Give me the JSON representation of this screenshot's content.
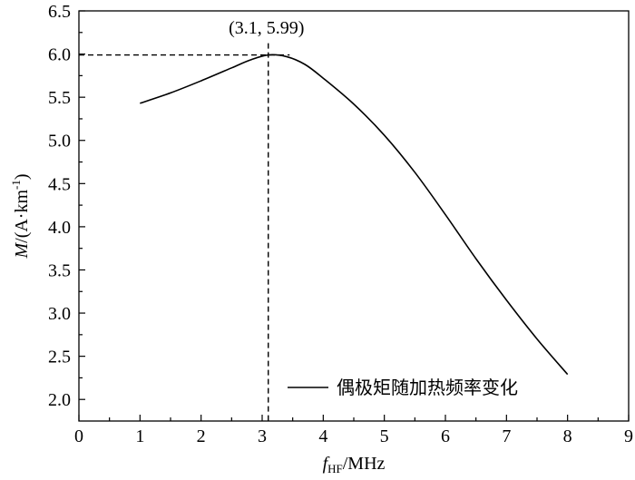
{
  "chart_data": {
    "type": "line",
    "title": "",
    "xlabel": {
      "main": "f",
      "sub": "HF",
      "unit": "/MHz"
    },
    "ylabel": {
      "main": "M",
      "unit_pre": "/(A·km",
      "sup": "-1",
      "unit_post": ")"
    },
    "xlim": [
      0,
      9
    ],
    "ylim": [
      1.75,
      6.5
    ],
    "xticks": [
      "0",
      "1",
      "2",
      "3",
      "4",
      "5",
      "6",
      "7",
      "8",
      "9"
    ],
    "xtick_values": [
      0,
      1,
      2,
      3,
      4,
      5,
      6,
      7,
      8,
      9
    ],
    "yticks": [
      "2.0",
      "2.5",
      "3.0",
      "3.5",
      "4.0",
      "4.5",
      "5.0",
      "5.5",
      "6.0",
      "6.5"
    ],
    "ytick_values": [
      2.0,
      2.5,
      3.0,
      3.5,
      4.0,
      4.5,
      5.0,
      5.5,
      6.0,
      6.5
    ],
    "grid": false,
    "legend_position": "bottom-right",
    "series": [
      {
        "name": "偶极矩随加热频率变化",
        "color": "#000000",
        "x": [
          1.0,
          1.5,
          2.0,
          2.5,
          2.8,
          3.1,
          3.4,
          3.7,
          4.0,
          4.5,
          5.0,
          5.5,
          6.0,
          6.5,
          7.0,
          7.5,
          8.0
        ],
        "y": [
          5.43,
          5.55,
          5.69,
          5.84,
          5.93,
          5.99,
          5.97,
          5.88,
          5.72,
          5.42,
          5.06,
          4.63,
          4.14,
          3.63,
          3.15,
          2.7,
          2.29
        ]
      }
    ],
    "annotations": [
      {
        "text": "(3.1, 5.99)",
        "x": 3.1,
        "y": 5.99
      }
    ],
    "reference_lines": [
      {
        "orientation": "vertical",
        "value": 3.1,
        "style": "dashed"
      },
      {
        "orientation": "horizontal",
        "value": 5.99,
        "style": "dashed"
      }
    ]
  }
}
